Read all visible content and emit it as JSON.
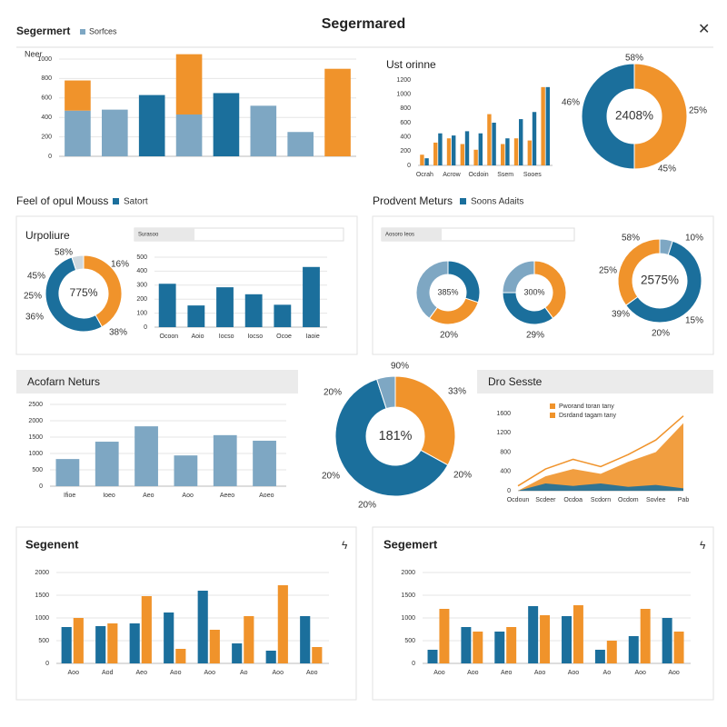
{
  "header": {
    "title": "Segermared",
    "section": "Segermert",
    "sections": [
      {
        "title": "Feel of opul Mouss",
        "legend": "Satort"
      },
      {
        "title": "Prodvent Meturs",
        "legend": "Soons Adaits"
      }
    ]
  },
  "chart_data": [
    {
      "type": "bar",
      "stacked": true,
      "ylabel": "Neer",
      "categories": [
        null,
        null,
        null,
        null,
        null,
        null,
        null,
        null
      ],
      "series": [
        {
          "name": "Sorfces",
          "color": "#7ea7c3",
          "colors": [
            "#7ea7c3",
            "#7ea7c3",
            "#1b6f9c",
            "#7ea7c3",
            "#1b6f9c",
            "#7ea7c3",
            "#7ea7c3",
            "#7ea7c3"
          ],
          "values": [
            470,
            480,
            630,
            430,
            650,
            520,
            250,
            0
          ]
        },
        {
          "color": "#f0932b",
          "values": [
            310,
            0,
            0,
            620,
            0,
            0,
            0,
            900
          ]
        }
      ],
      "ylim": [
        0,
        1000
      ],
      "yticks": [
        0,
        200,
        400,
        600,
        800,
        1000
      ],
      "grid": true
    },
    {
      "type": "bar",
      "title": "Ust orinne",
      "categories": [
        "Ocrah",
        null,
        "Acrow",
        null,
        "Ocdoin",
        null,
        "Ssem",
        null,
        "Sooes",
        null
      ],
      "series": [
        {
          "color": "#f0932b",
          "values": [
            150,
            320,
            380,
            300,
            220,
            720,
            300,
            380,
            350,
            1100
          ]
        },
        {
          "color": "#1b6f9c",
          "values": [
            100,
            450,
            420,
            480,
            450,
            600,
            380,
            650,
            750,
            1100
          ]
        }
      ],
      "ylim": [
        0,
        1200
      ],
      "yticks": [
        0,
        200,
        400,
        600,
        800,
        1000,
        1200
      ],
      "grid": false
    },
    {
      "type": "donut",
      "center_label": "2408%",
      "values": [
        50,
        50
      ],
      "colors": [
        "#f0932b",
        "#1b6f9c"
      ],
      "annotations": [
        "58%",
        "25%",
        "45%",
        "46%"
      ]
    },
    {
      "type": "donut",
      "title": "Urpoliure",
      "center_label": "775%",
      "values": [
        42,
        53,
        5
      ],
      "colors": [
        "#f0932b",
        "#1b6f9c",
        "#cfd8de"
      ],
      "annotations": [
        "16%",
        "38%",
        "36%",
        "25%",
        "45%",
        "58%"
      ]
    },
    {
      "type": "bar",
      "subtitle": "Surasoo",
      "categories": [
        "Ocoon",
        "Aoio",
        "Iocso",
        "Iocso",
        "Ocoe",
        "Iaoie"
      ],
      "series": [
        {
          "color": "#1b6f9c",
          "values": [
            310,
            155,
            285,
            235,
            160,
            430
          ]
        }
      ],
      "ylim": [
        0,
        500
      ],
      "yticks": [
        0,
        100,
        200,
        300,
        400,
        500
      ],
      "grid": true
    },
    {
      "type": "donut",
      "subtitle": "Aosoro Ieos",
      "center_label": "385%",
      "values": [
        30,
        30,
        40
      ],
      "colors": [
        "#1b6f9c",
        "#f0932b",
        "#7ea7c3"
      ],
      "annotations": [
        "20%"
      ]
    },
    {
      "type": "donut",
      "center_label": "300%",
      "values": [
        40,
        35,
        25
      ],
      "colors": [
        "#f0932b",
        "#1b6f9c",
        "#7ea7c3"
      ],
      "annotations": [
        "29%"
      ]
    },
    {
      "type": "donut",
      "center_label": "2575%",
      "values": [
        5,
        60,
        35
      ],
      "colors": [
        "#7ea7c3",
        "#1b6f9c",
        "#f0932b"
      ],
      "annotations": [
        "10%",
        "15%",
        "20%",
        "39%",
        "25%",
        "58%"
      ]
    },
    {
      "type": "bar",
      "title": "Acofarn Neturs",
      "categories": [
        "Ifioe",
        "Ioeo",
        "Aeo",
        "Aoo",
        "Aeeo",
        "Aoeo"
      ],
      "series": [
        {
          "color": "#7ea7c3",
          "values": [
            830,
            1360,
            1830,
            940,
            1560,
            1390
          ]
        }
      ],
      "ylim": [
        0,
        2500
      ],
      "yticks": [
        0,
        500,
        1000,
        1500,
        2000,
        2500
      ],
      "grid": true
    },
    {
      "type": "donut",
      "center_label": "181%",
      "values": [
        33,
        62,
        5
      ],
      "colors": [
        "#f0932b",
        "#1b6f9c",
        "#7ea7c3"
      ],
      "annotations": [
        "90%",
        "33%",
        "20%",
        "20%",
        "20%",
        "20%"
      ]
    },
    {
      "type": "area",
      "title": "Dro Sesste",
      "categories": [
        "Ocdoun",
        "Scdeer",
        "Ocdoa",
        "Scdorn",
        "Ocdom",
        "Sovlee",
        "Pab"
      ],
      "series": [
        {
          "name": "Pworand toran tany",
          "color": "#f0932b",
          "values": [
            0,
            300,
            450,
            350,
            600,
            800,
            1400
          ]
        },
        {
          "name": "Dsrdand tagam tany",
          "color": "#f0932b",
          "values": [
            100,
            450,
            650,
            500,
            750,
            1050,
            1550
          ]
        },
        {
          "color": "#1b6f9c",
          "values": [
            0,
            150,
            100,
            150,
            80,
            120,
            50
          ]
        }
      ],
      "ylim": [
        0,
        1600
      ],
      "yticks": [
        0,
        400,
        800,
        1200,
        1600
      ],
      "grid": false
    },
    {
      "type": "bar",
      "title": "Segenent",
      "categories": [
        "Aoo",
        "Aod",
        "Aeo",
        "Aoo",
        "Aoo",
        "Ao",
        "Aoo",
        "Aoo"
      ],
      "series": [
        {
          "color": "#1b6f9c",
          "values": [
            800,
            820,
            880,
            1120,
            1600,
            440,
            280,
            1040
          ]
        },
        {
          "color": "#f0932b",
          "values": [
            1000,
            880,
            1480,
            320,
            740,
            1040,
            1720,
            360
          ]
        }
      ],
      "ylim": [
        0,
        2000
      ],
      "yticks": [
        0,
        500,
        1000,
        1500,
        2000
      ],
      "grid": true
    },
    {
      "type": "bar",
      "title": "Segemert",
      "categories": [
        "Aoo",
        "Aoo",
        "Aeo",
        "Aoo",
        "Aoo",
        "Ao",
        "Aoo",
        "Aoo"
      ],
      "series": [
        {
          "color": "#1b6f9c",
          "values": [
            300,
            800,
            700,
            1260,
            1040,
            300,
            600,
            1000
          ]
        },
        {
          "color": "#f0932b",
          "values": [
            1200,
            700,
            800,
            1060,
            1280,
            500,
            1200,
            700
          ]
        }
      ],
      "ylim": [
        0,
        2000
      ],
      "yticks": [
        0,
        500,
        1000,
        1500,
        2000
      ],
      "grid": true
    }
  ]
}
